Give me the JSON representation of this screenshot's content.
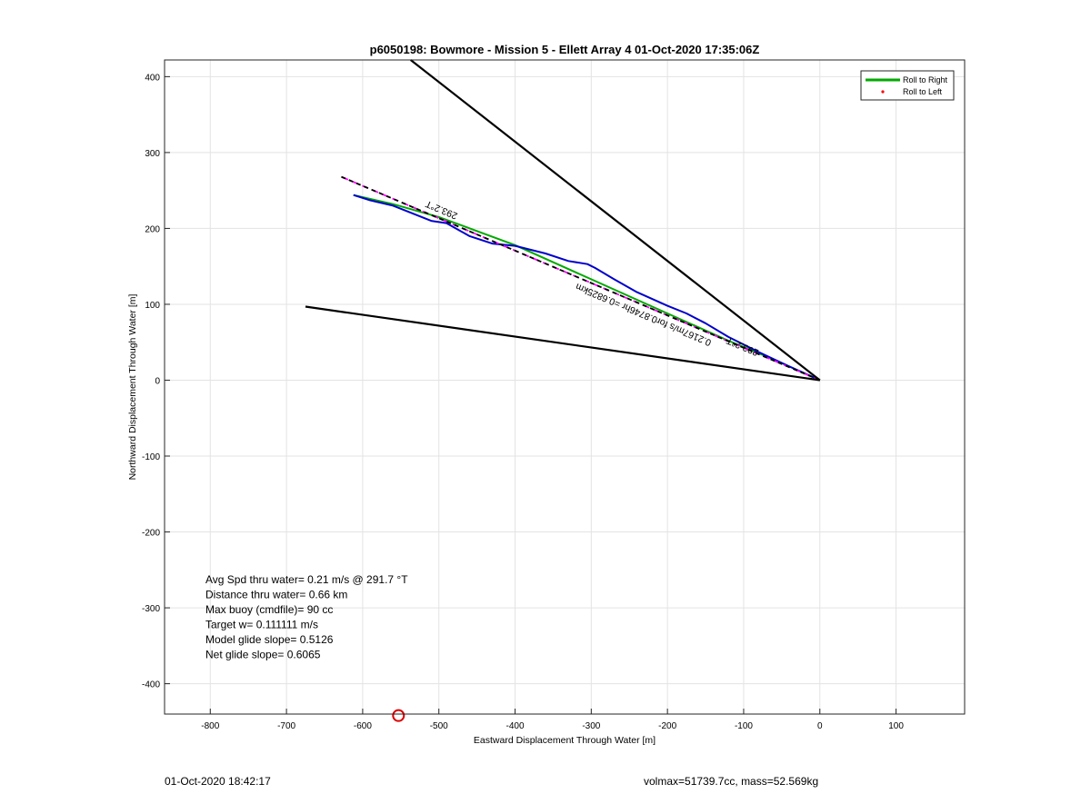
{
  "footer": {
    "left": "01-Oct-2020 18:42:17",
    "right": "volmax=51739.7cc, mass=52.569kg"
  },
  "chart_data": {
    "type": "line",
    "title": "p6050198: Bowmore - Mission 5 - Ellett Array 4 01-Oct-2020 17:35:06Z",
    "xlabel": "Eastward Displacement Through Water [m]",
    "ylabel": "Northward Displacement Through Water [m]",
    "xlim": [
      -860,
      190
    ],
    "ylim": [
      -440,
      422
    ],
    "xticks": [
      -800,
      -700,
      -600,
      -500,
      -400,
      -300,
      -200,
      -100,
      0,
      100
    ],
    "yticks": [
      -400,
      -300,
      -200,
      -100,
      0,
      100,
      200,
      300,
      400
    ],
    "grid": true,
    "legend": {
      "position": "top-right",
      "entries": [
        {
          "label": "Roll to Right",
          "color": "#00aa00",
          "style": "line"
        },
        {
          "label": "Roll to Left",
          "color": "#ff0000",
          "style": "dot"
        }
      ]
    },
    "series": [
      {
        "name": "Roll to Right",
        "color": "#00aa00",
        "width": 2,
        "x": [
          0,
          -60,
          -120,
          -200,
          -300,
          -400,
          -500,
          -560,
          -612
        ],
        "y": [
          0,
          27,
          52,
          88,
          133,
          178,
          215,
          232,
          244
        ]
      },
      {
        "color": "#0000cc",
        "width": 2,
        "x": [
          0,
          -40,
          -80,
          -120,
          -150,
          -175,
          -200,
          -240,
          -270,
          -295,
          -305,
          -330,
          -360,
          -400,
          -430,
          -460,
          -490,
          -510,
          -530,
          -560,
          -590,
          -612
        ],
        "y": [
          0,
          18,
          37,
          57,
          75,
          88,
          98,
          116,
          133,
          148,
          153,
          157,
          167,
          177,
          180,
          190,
          207,
          210,
          218,
          230,
          237,
          244
        ]
      },
      {
        "color": "#ff00ff",
        "width": 1.8,
        "dash": "7,5",
        "x": [
          0,
          -628
        ],
        "y": [
          0,
          268
        ]
      },
      {
        "color": "#000000",
        "width": 1.8,
        "dash": "5,4",
        "x": [
          0,
          -628
        ],
        "y": [
          0,
          268
        ]
      },
      {
        "color": "#000000",
        "width": 2.2,
        "x": [
          0,
          -537
        ],
        "y": [
          0,
          422
        ]
      },
      {
        "color": "#000000",
        "width": 2.2,
        "x": [
          0,
          -675
        ],
        "y": [
          0,
          97
        ]
      }
    ],
    "marker": {
      "x": -553,
      "y": -442,
      "shape": "circle",
      "color": "#dd0000"
    },
    "annotations": [
      {
        "text": "293.2°T",
        "x": -495,
        "y": 228,
        "rotate": 23
      },
      {
        "text": "293.2°T",
        "x": -100,
        "y": 48,
        "rotate": 23
      },
      {
        "text": "0.2167m/s for0.8746hr =0.6825km",
        "x": -230,
        "y": 90,
        "rotate": 23
      }
    ],
    "stats": [
      "Avg Spd thru water=  0.21 m/s @ 291.7 °T",
      "Distance thru water=  0.66 km",
      "Max buoy (cmdfile)= 90 cc",
      "Target w= 0.111111 m/s",
      "Model glide slope= 0.5126",
      "Net glide slope= 0.6065"
    ]
  }
}
